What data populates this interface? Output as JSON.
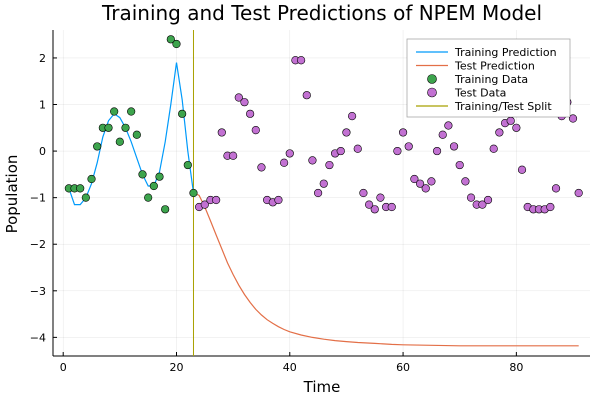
{
  "chart_data": {
    "type": "line",
    "title": "Training and Test Predictions of NPEM Model",
    "xlabel": "Time",
    "ylabel": "Population",
    "xlim": [
      -1.8,
      93
    ],
    "ylim": [
      -4.4,
      2.6
    ],
    "xticks": [
      0,
      20,
      40,
      60,
      80
    ],
    "yticks": [
      -4,
      -3,
      -2,
      -1,
      0,
      1,
      2
    ],
    "grid": true,
    "legend_position": "top-right",
    "split_x": 23,
    "series": [
      {
        "name": "Training Prediction",
        "kind": "line",
        "color": "#009AFA",
        "x": [
          1,
          2,
          3,
          4,
          5,
          6,
          7,
          8,
          9,
          10,
          11,
          12,
          13,
          14,
          15,
          16,
          17,
          18,
          19,
          20,
          21,
          22,
          23
        ],
        "y": [
          -0.8,
          -1.15,
          -1.15,
          -1.0,
          -0.7,
          -0.25,
          0.3,
          0.65,
          0.8,
          0.72,
          0.5,
          0.2,
          -0.15,
          -0.5,
          -0.75,
          -0.75,
          -0.45,
          0.2,
          1.0,
          1.9,
          1.1,
          0.0,
          -0.9
        ]
      },
      {
        "name": "Test Prediction",
        "kind": "line",
        "color": "#E36F47",
        "x": [
          23,
          24,
          25,
          26,
          27,
          28,
          29,
          30,
          31,
          32,
          33,
          34,
          35,
          36,
          37,
          38,
          39,
          40,
          42,
          44,
          46,
          48,
          50,
          52,
          55,
          58,
          60,
          65,
          70,
          75,
          80,
          85,
          91
        ],
        "y": [
          -0.9,
          -0.95,
          -1.2,
          -1.5,
          -1.8,
          -2.1,
          -2.4,
          -2.65,
          -2.88,
          -3.08,
          -3.25,
          -3.4,
          -3.52,
          -3.62,
          -3.7,
          -3.77,
          -3.83,
          -3.88,
          -3.95,
          -4.0,
          -4.04,
          -4.07,
          -4.09,
          -4.11,
          -4.13,
          -4.15,
          -4.16,
          -4.17,
          -4.18,
          -4.18,
          -4.18,
          -4.18,
          -4.18
        ]
      },
      {
        "name": "Training Data",
        "kind": "scatter",
        "color": "#3DA44D",
        "x": [
          1,
          2,
          3,
          4,
          5,
          6,
          7,
          8,
          9,
          10,
          11,
          12,
          13,
          14,
          15,
          16,
          17,
          18,
          19,
          20,
          21,
          22,
          23
        ],
        "y": [
          -0.8,
          -0.8,
          -0.8,
          -1.0,
          -0.6,
          0.1,
          0.5,
          0.5,
          0.85,
          0.2,
          0.5,
          0.85,
          0.35,
          -0.5,
          -1.0,
          -0.75,
          -0.55,
          -1.25,
          2.4,
          2.3,
          0.8,
          -0.3,
          -0.9
        ]
      },
      {
        "name": "Test Data",
        "kind": "scatter",
        "color": "#C271D2",
        "x": [
          24,
          25,
          26,
          27,
          28,
          29,
          30,
          31,
          32,
          33,
          34,
          35,
          36,
          37,
          38,
          39,
          40,
          41,
          42,
          43,
          44,
          45,
          46,
          47,
          48,
          49,
          50,
          51,
          52,
          53,
          54,
          55,
          56,
          57,
          58,
          59,
          60,
          61,
          62,
          63,
          64,
          65,
          66,
          67,
          68,
          69,
          70,
          71,
          72,
          73,
          74,
          75,
          76,
          77,
          78,
          79,
          80,
          81,
          82,
          83,
          84,
          85,
          86,
          87,
          88,
          89,
          90,
          91
        ],
        "y": [
          -1.2,
          -1.15,
          -1.05,
          -1.05,
          0.4,
          -0.1,
          -0.1,
          1.15,
          1.05,
          0.8,
          0.45,
          -0.35,
          -1.05,
          -1.1,
          -1.05,
          -0.25,
          -0.05,
          1.95,
          1.95,
          1.2,
          -0.2,
          -0.9,
          -0.7,
          -0.3,
          -0.05,
          0.0,
          0.4,
          0.75,
          0.05,
          -0.9,
          -1.15,
          -1.25,
          -1.0,
          -1.2,
          -1.2,
          0.0,
          0.4,
          0.1,
          -0.6,
          -0.7,
          -0.8,
          -0.65,
          0.0,
          0.35,
          0.55,
          0.1,
          -0.3,
          -0.65,
          -1.0,
          -1.15,
          -1.15,
          -1.05,
          0.05,
          0.4,
          0.6,
          0.65,
          0.5,
          -0.4,
          -1.2,
          -1.25,
          -1.25,
          -1.25,
          -1.2,
          -0.8,
          0.75,
          1.05,
          0.7,
          -0.9
        ]
      }
    ],
    "split_series": {
      "name": "Training/Test Split",
      "color": "#A8A100"
    }
  }
}
